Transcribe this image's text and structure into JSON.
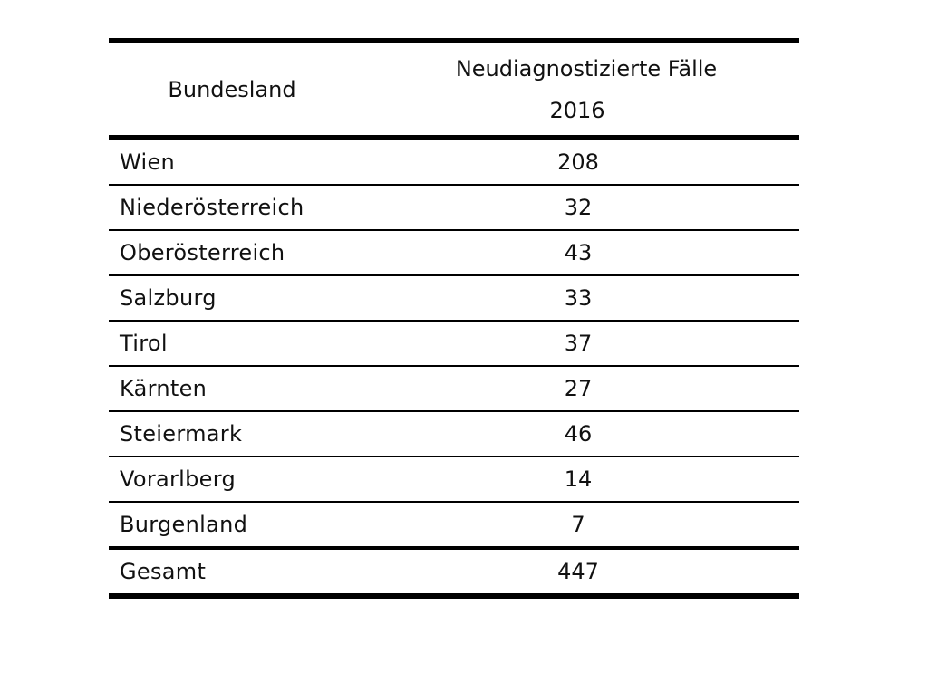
{
  "table": {
    "header": {
      "region": "Bundesland",
      "cases_line1": "Neudiagnostizierte Fälle",
      "cases_line2": "2016"
    },
    "rows": [
      {
        "region": "Wien",
        "cases": "208"
      },
      {
        "region": "Niederösterreich",
        "cases": "32"
      },
      {
        "region": "Oberösterreich",
        "cases": "43"
      },
      {
        "region": "Salzburg",
        "cases": "33"
      },
      {
        "region": "Tirol",
        "cases": "37"
      },
      {
        "region": "Kärnten",
        "cases": "27"
      },
      {
        "region": "Steiermark",
        "cases": "46"
      },
      {
        "region": "Vorarlberg",
        "cases": "14"
      },
      {
        "region": "Burgenland",
        "cases": "7"
      }
    ],
    "total": {
      "region": "Gesamt",
      "cases": "447"
    }
  }
}
